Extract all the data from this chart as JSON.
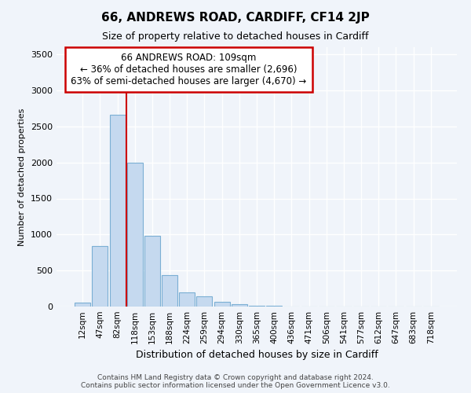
{
  "title1": "66, ANDREWS ROAD, CARDIFF, CF14 2JP",
  "title2": "Size of property relative to detached houses in Cardiff",
  "xlabel": "Distribution of detached houses by size in Cardiff",
  "ylabel": "Number of detached properties",
  "categories": [
    "12sqm",
    "47sqm",
    "82sqm",
    "118sqm",
    "153sqm",
    "188sqm",
    "224sqm",
    "259sqm",
    "294sqm",
    "330sqm",
    "365sqm",
    "400sqm",
    "436sqm",
    "471sqm",
    "506sqm",
    "541sqm",
    "577sqm",
    "612sqm",
    "647sqm",
    "683sqm",
    "718sqm"
  ],
  "values": [
    55,
    840,
    2660,
    2000,
    980,
    440,
    200,
    140,
    70,
    30,
    15,
    8,
    5,
    3,
    2,
    1,
    1,
    1,
    0,
    0,
    0
  ],
  "bar_color": "#c5d9ef",
  "bar_edge_color": "#7bafd4",
  "vline_color": "#cc0000",
  "vline_position": 3,
  "annotation_line1": "66 ANDREWS ROAD: 109sqm",
  "annotation_line2": "← 36% of detached houses are smaller (2,696)",
  "annotation_line3": "63% of semi-detached houses are larger (4,670) →",
  "annotation_box_color": "#ffffff",
  "annotation_edge_color": "#cc0000",
  "ylim": [
    0,
    3600
  ],
  "yticks": [
    0,
    500,
    1000,
    1500,
    2000,
    2500,
    3000,
    3500
  ],
  "fig_bg_color": "#f0f4fa",
  "plot_bg_color": "#f0f4fa",
  "title1_fontsize": 11,
  "title2_fontsize": 9,
  "footer1": "Contains HM Land Registry data © Crown copyright and database right 2024.",
  "footer2": "Contains public sector information licensed under the Open Government Licence v3.0."
}
